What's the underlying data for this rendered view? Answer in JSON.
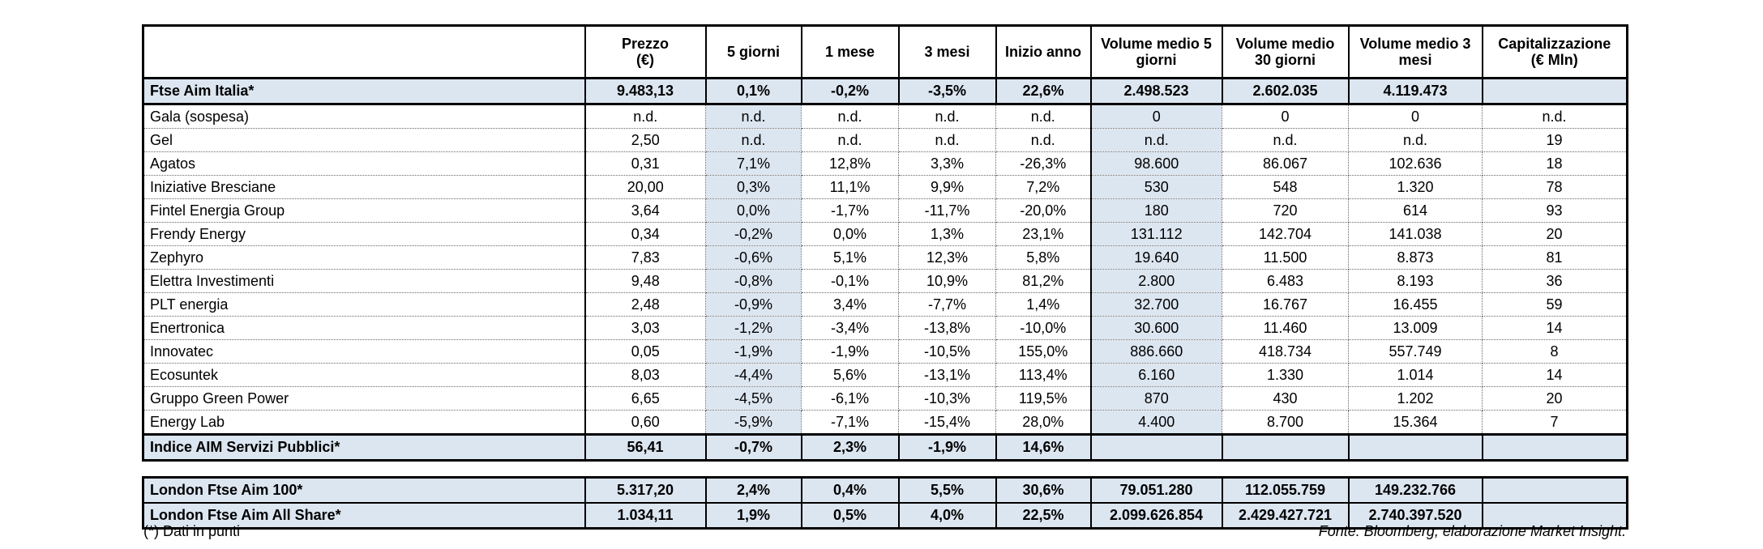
{
  "colors": {
    "highlight_blue": "#dce6f1",
    "border_black": "#000000"
  },
  "footer": {
    "left_note": "(*) Dati in punti",
    "source": "Fonte: Bloomberg, elaborazione Market Insight."
  },
  "main_table": {
    "columns": [
      {
        "line1": "Prezzo",
        "line2": "(€)"
      },
      {
        "line1": "5 giorni",
        "line2": ""
      },
      {
        "line1": "1 mese",
        "line2": ""
      },
      {
        "line1": "3 mesi",
        "line2": ""
      },
      {
        "line1": "Inizio anno",
        "line2": ""
      },
      {
        "line1": "Volume medio 5",
        "line2": "giorni"
      },
      {
        "line1": "Volume medio",
        "line2": "30 giorni"
      },
      {
        "line1": "Volume medio 3",
        "line2": "mesi"
      },
      {
        "line1": "Capitalizzazione",
        "line2": "(€ Mln)"
      }
    ],
    "rows": [
      {
        "name": "Ftse Aim Italia*",
        "highlight": true,
        "values": [
          "9.483,13",
          "0,1%",
          "-0,2%",
          "-3,5%",
          "22,6%",
          "2.498.523",
          "2.602.035",
          "4.119.473",
          ""
        ]
      },
      {
        "name": "Gala (sospesa)",
        "highlight": false,
        "values": [
          "n.d.",
          "n.d.",
          "n.d.",
          "n.d.",
          "n.d.",
          "0",
          "0",
          "0",
          "n.d."
        ]
      },
      {
        "name": "Gel",
        "highlight": false,
        "values": [
          "2,50",
          "n.d.",
          "n.d.",
          "n.d.",
          "n.d.",
          "n.d.",
          "n.d.",
          "n.d.",
          "19"
        ]
      },
      {
        "name": "Agatos",
        "highlight": false,
        "values": [
          "0,31",
          "7,1%",
          "12,8%",
          "3,3%",
          "-26,3%",
          "98.600",
          "86.067",
          "102.636",
          "18"
        ]
      },
      {
        "name": "Iniziative Bresciane",
        "highlight": false,
        "values": [
          "20,00",
          "0,3%",
          "11,1%",
          "9,9%",
          "7,2%",
          "530",
          "548",
          "1.320",
          "78"
        ]
      },
      {
        "name": "Fintel Energia Group",
        "highlight": false,
        "values": [
          "3,64",
          "0,0%",
          "-1,7%",
          "-11,7%",
          "-20,0%",
          "180",
          "720",
          "614",
          "93"
        ]
      },
      {
        "name": "Frendy Energy",
        "highlight": false,
        "values": [
          "0,34",
          "-0,2%",
          "0,0%",
          "1,3%",
          "23,1%",
          "131.112",
          "142.704",
          "141.038",
          "20"
        ]
      },
      {
        "name": "Zephyro",
        "highlight": false,
        "values": [
          "7,83",
          "-0,6%",
          "5,1%",
          "12,3%",
          "5,8%",
          "19.640",
          "11.500",
          "8.873",
          "81"
        ]
      },
      {
        "name": "Elettra Investimenti",
        "highlight": false,
        "values": [
          "9,48",
          "-0,8%",
          "-0,1%",
          "10,9%",
          "81,2%",
          "2.800",
          "6.483",
          "8.193",
          "36"
        ]
      },
      {
        "name": "PLT energia",
        "highlight": false,
        "values": [
          "2,48",
          "-0,9%",
          "3,4%",
          "-7,7%",
          "1,4%",
          "32.700",
          "16.767",
          "16.455",
          "59"
        ]
      },
      {
        "name": "Enertronica",
        "highlight": false,
        "values": [
          "3,03",
          "-1,2%",
          "-3,4%",
          "-13,8%",
          "-10,0%",
          "30.600",
          "11.460",
          "13.009",
          "14"
        ]
      },
      {
        "name": "Innovatec",
        "highlight": false,
        "values": [
          "0,05",
          "-1,9%",
          "-1,9%",
          "-10,5%",
          "155,0%",
          "886.660",
          "418.734",
          "557.749",
          "8"
        ]
      },
      {
        "name": "Ecosuntek",
        "highlight": false,
        "values": [
          "8,03",
          "-4,4%",
          "5,6%",
          "-13,1%",
          "113,4%",
          "6.160",
          "1.330",
          "1.014",
          "14"
        ]
      },
      {
        "name": "Gruppo Green Power",
        "highlight": false,
        "values": [
          "6,65",
          "-4,5%",
          "-6,1%",
          "-10,3%",
          "119,5%",
          "870",
          "430",
          "1.202",
          "20"
        ]
      },
      {
        "name": "Energy Lab",
        "highlight": false,
        "values": [
          "0,60",
          "-5,9%",
          "-7,1%",
          "-15,4%",
          "28,0%",
          "4.400",
          "8.700",
          "15.364",
          "7"
        ]
      },
      {
        "name": "Indice AIM Servizi Pubblici*",
        "highlight": true,
        "values": [
          "56,41",
          "-0,7%",
          "2,3%",
          "-1,9%",
          "14,6%",
          "",
          "",
          "",
          ""
        ]
      }
    ]
  },
  "london_table": {
    "rows": [
      {
        "name": "London Ftse Aim 100*",
        "values": [
          "5.317,20",
          "2,4%",
          "0,4%",
          "5,5%",
          "30,6%",
          "79.051.280",
          "112.055.759",
          "149.232.766",
          ""
        ]
      },
      {
        "name": "London Ftse Aim All Share*",
        "values": [
          "1.034,11",
          "1,9%",
          "0,5%",
          "4,0%",
          "22,5%",
          "2.099.626.854",
          "2.429.427.721",
          "2.740.397.520",
          ""
        ]
      }
    ]
  }
}
